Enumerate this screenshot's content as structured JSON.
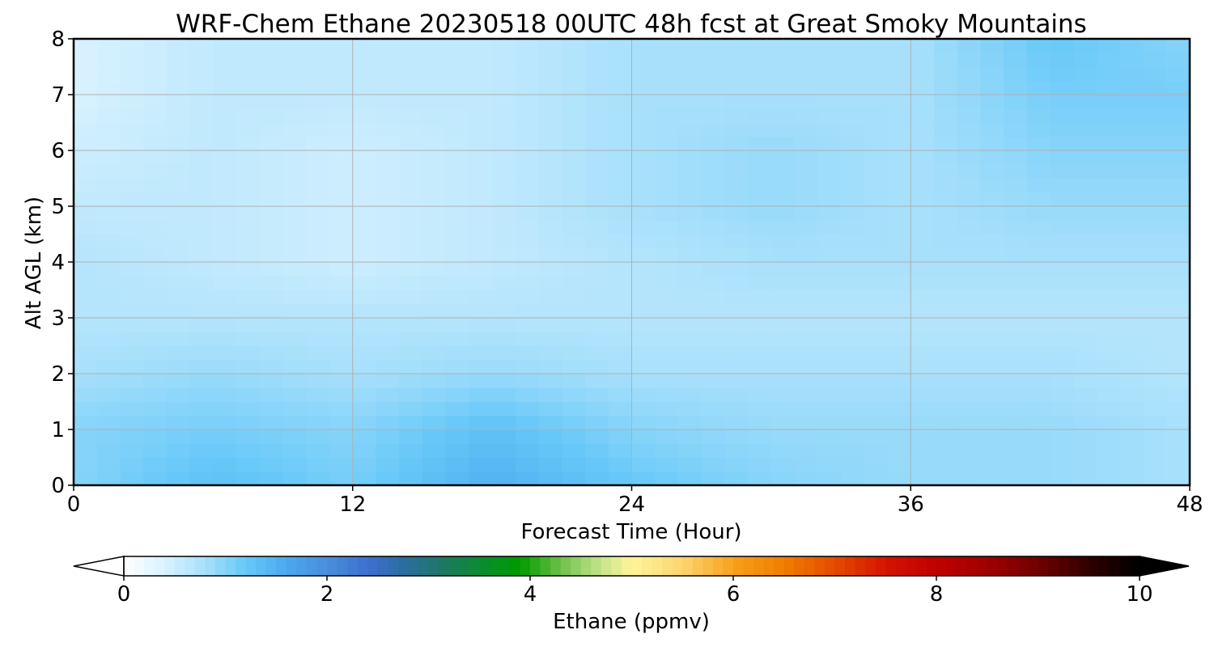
{
  "chart_data": {
    "type": "heatmap",
    "title": "WRF-Chem Ethane  20230518 00UTC 48h fcst at Great Smoky Mountains",
    "xlabel": "Forecast Time (Hour)",
    "ylabel": "Alt AGL (km)",
    "xlim": [
      0,
      48
    ],
    "ylim": [
      0,
      8
    ],
    "xticks": [
      0,
      12,
      24,
      36,
      48
    ],
    "yticks": [
      0,
      1,
      2,
      3,
      4,
      5,
      6,
      7,
      8
    ],
    "grid": true,
    "x": [
      0,
      6,
      12,
      18,
      24,
      30,
      36,
      42,
      48
    ],
    "y": [
      0,
      1,
      2,
      3,
      4,
      5,
      6,
      7,
      8
    ],
    "z": [
      [
        1.0,
        1.3,
        1.1,
        1.5,
        1.2,
        1.0,
        0.9,
        0.9,
        0.8
      ],
      [
        1.0,
        1.1,
        1.0,
        1.3,
        1.0,
        0.9,
        0.9,
        0.9,
        0.8
      ],
      [
        0.8,
        0.9,
        0.8,
        0.9,
        0.8,
        0.8,
        0.8,
        0.8,
        0.7
      ],
      [
        0.7,
        0.7,
        0.7,
        0.7,
        0.7,
        0.7,
        0.7,
        0.7,
        0.7
      ],
      [
        0.7,
        0.6,
        0.5,
        0.6,
        0.7,
        0.8,
        0.8,
        0.8,
        0.8
      ],
      [
        0.6,
        0.6,
        0.5,
        0.6,
        0.8,
        0.9,
        0.8,
        0.9,
        0.9
      ],
      [
        0.5,
        0.6,
        0.5,
        0.6,
        0.8,
        0.9,
        0.8,
        1.0,
        1.0
      ],
      [
        0.4,
        0.6,
        0.6,
        0.6,
        0.8,
        0.8,
        0.8,
        1.1,
        1.1
      ],
      [
        0.4,
        0.6,
        0.6,
        0.6,
        0.8,
        0.8,
        0.8,
        1.2,
        1.0
      ]
    ],
    "colorbar": {
      "label": "Ethane  (ppmv)",
      "range": [
        0,
        10
      ],
      "ticks": [
        0,
        2,
        4,
        6,
        8,
        10
      ],
      "extend": "both",
      "extend_min_color": "#ffffff",
      "extend_max_color": "#000000",
      "stops": [
        {
          "value": 0.0,
          "color": "#ffffff"
        },
        {
          "value": 0.4,
          "color": "#d9f2ff"
        },
        {
          "value": 0.8,
          "color": "#a8e0fb"
        },
        {
          "value": 1.2,
          "color": "#66c8f8"
        },
        {
          "value": 1.6,
          "color": "#4aa8ee"
        },
        {
          "value": 2.0,
          "color": "#4a8fdb"
        },
        {
          "value": 2.4,
          "color": "#3d6fd0"
        },
        {
          "value": 2.8,
          "color": "#2a6d9a"
        },
        {
          "value": 3.2,
          "color": "#1b7a5a"
        },
        {
          "value": 3.6,
          "color": "#069025"
        },
        {
          "value": 3.9,
          "color": "#009a00"
        },
        {
          "value": 4.3,
          "color": "#6fc04a"
        },
        {
          "value": 4.7,
          "color": "#c5e58a"
        },
        {
          "value": 5.0,
          "color": "#fff59a"
        },
        {
          "value": 5.5,
          "color": "#fcd470"
        },
        {
          "value": 6.0,
          "color": "#f7a11a"
        },
        {
          "value": 6.5,
          "color": "#f07d00"
        },
        {
          "value": 7.0,
          "color": "#e44a00"
        },
        {
          "value": 7.5,
          "color": "#d41400"
        },
        {
          "value": 8.0,
          "color": "#c00000"
        },
        {
          "value": 8.5,
          "color": "#a00000"
        },
        {
          "value": 9.0,
          "color": "#700000"
        },
        {
          "value": 9.5,
          "color": "#300000"
        },
        {
          "value": 10.0,
          "color": "#000000"
        }
      ]
    }
  }
}
